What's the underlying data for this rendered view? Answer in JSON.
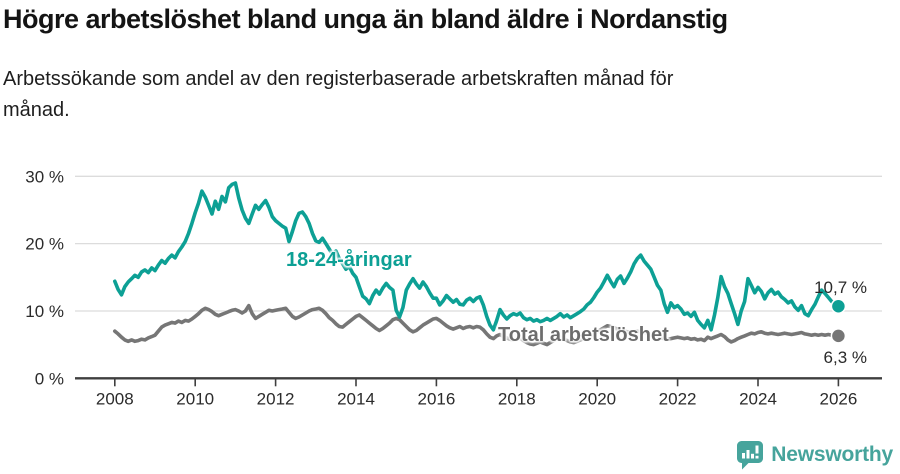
{
  "header": {
    "title": "Högre arbetslöshet bland unga än bland äldre i Nordanstig",
    "subtitle_lines": [
      "Arbetssökande som andel av den registerbaserade arbetskraften månad för",
      "månad."
    ]
  },
  "chart_data": {
    "type": "line",
    "title": "Högre arbetslöshet bland unga än bland äldre i Nordanstig",
    "subtitle": "Arbetssökande som andel av den registerbaserade arbetskraften månad för månad.",
    "xlabel": "",
    "ylabel": "",
    "x_start": 2008,
    "x_step_months": 1,
    "xlim": [
      2007,
      2027.1
    ],
    "ylim": [
      0,
      31
    ],
    "grid": true,
    "legend": "inline-labels",
    "x_ticks": [
      2008,
      2010,
      2012,
      2014,
      2016,
      2018,
      2020,
      2022,
      2024,
      2026
    ],
    "y_ticks": [
      {
        "value": 30,
        "label": "30 %"
      },
      {
        "value": 20,
        "label": "20 %"
      },
      {
        "value": 10,
        "label": "10 %"
      },
      {
        "value": 0,
        "label": "0 %"
      }
    ],
    "axis_color": "#3f3f3f",
    "grid_color": "#dcdcdc",
    "series": [
      {
        "name": "18-24-åringar",
        "color": "#0da095",
        "end_label": "10,7 %",
        "end_value": 10.7,
        "values": [
          14.4,
          13.2,
          12.4,
          13.6,
          14.3,
          14.8,
          15.3,
          15.0,
          15.8,
          16.1,
          15.7,
          16.4,
          16.0,
          16.8,
          17.5,
          17.1,
          17.8,
          18.3,
          17.9,
          18.8,
          19.5,
          20.3,
          21.5,
          23.0,
          24.6,
          26.0,
          27.8,
          26.9,
          25.7,
          24.4,
          26.3,
          25.1,
          27.0,
          26.2,
          28.3,
          28.8,
          29.0,
          26.8,
          25.0,
          23.8,
          23.0,
          24.4,
          25.7,
          25.1,
          25.8,
          26.4,
          25.4,
          24.0,
          23.4,
          23.0,
          22.6,
          22.3,
          20.3,
          21.8,
          23.4,
          24.5,
          24.7,
          24.0,
          23.0,
          21.5,
          20.4,
          20.2,
          20.8,
          20.0,
          19.2,
          18.4,
          18.9,
          17.8,
          17.0,
          16.2,
          16.6,
          15.6,
          15.0,
          13.6,
          12.2,
          11.8,
          11.1,
          12.3,
          13.1,
          12.5,
          13.4,
          14.1,
          13.5,
          13.1,
          10.1,
          9.1,
          10.5,
          13.1,
          14.0,
          14.8,
          14.0,
          13.4,
          14.3,
          13.6,
          12.7,
          11.9,
          11.9,
          10.9,
          11.5,
          12.3,
          11.8,
          11.3,
          11.7,
          11.0,
          10.9,
          11.6,
          11.9,
          11.4,
          11.9,
          12.1,
          10.9,
          9.2,
          7.9,
          7.2,
          8.6,
          10.2,
          9.4,
          8.8,
          9.3,
          9.6,
          9.4,
          9.7,
          9.0,
          8.7,
          8.9,
          8.5,
          8.7,
          8.4,
          8.6,
          8.9,
          8.6,
          8.9,
          9.2,
          9.6,
          9.1,
          9.4,
          9.0,
          9.3,
          9.6,
          9.9,
          10.3,
          10.9,
          11.3,
          12.0,
          12.8,
          13.4,
          14.3,
          15.3,
          14.4,
          13.6,
          14.7,
          15.2,
          14.1,
          14.9,
          15.8,
          17.0,
          17.8,
          18.3,
          17.4,
          16.8,
          16.2,
          15.0,
          13.8,
          13.1,
          11.1,
          9.8,
          11.2,
          10.5,
          10.8,
          10.3,
          9.5,
          9.7,
          9.2,
          9.8,
          8.6,
          8.0,
          7.5,
          8.6,
          7.2,
          9.4,
          12.0,
          15.1,
          13.6,
          12.6,
          11.1,
          9.6,
          8.0,
          10.0,
          11.4,
          14.8,
          13.8,
          12.7,
          13.5,
          12.9,
          11.8,
          12.7,
          13.2,
          12.5,
          12.8,
          12.1,
          11.7,
          11.2,
          11.5,
          10.6,
          10.1,
          10.8,
          9.6,
          9.3,
          10.2,
          11.0,
          12.1,
          13.1,
          12.6,
          12.0,
          11.4,
          11.0,
          10.7
        ]
      },
      {
        "name": "Total arbetslöshet",
        "color": "#767676",
        "end_label": "6,3 %",
        "end_value": 6.3,
        "values": [
          7.0,
          6.6,
          6.1,
          5.7,
          5.5,
          5.7,
          5.5,
          5.6,
          5.8,
          5.7,
          6.0,
          6.2,
          6.4,
          7.0,
          7.6,
          7.9,
          8.1,
          8.3,
          8.2,
          8.5,
          8.3,
          8.6,
          8.5,
          8.8,
          9.2,
          9.6,
          10.1,
          10.4,
          10.2,
          9.9,
          9.5,
          9.3,
          9.5,
          9.7,
          9.9,
          10.1,
          10.2,
          10.0,
          9.7,
          10.0,
          10.8,
          9.6,
          8.9,
          9.2,
          9.5,
          9.8,
          10.1,
          10.0,
          10.1,
          10.2,
          10.3,
          10.4,
          9.8,
          9.2,
          8.9,
          9.1,
          9.4,
          9.7,
          10.0,
          10.2,
          10.3,
          10.4,
          10.1,
          9.6,
          9.0,
          8.6,
          8.1,
          7.7,
          7.6,
          8.0,
          8.4,
          8.8,
          9.2,
          9.4,
          9.0,
          8.6,
          8.2,
          7.8,
          7.4,
          7.1,
          7.4,
          7.8,
          8.2,
          8.7,
          8.9,
          8.7,
          8.2,
          7.7,
          7.2,
          6.9,
          7.1,
          7.5,
          7.9,
          8.2,
          8.5,
          8.8,
          8.9,
          8.6,
          8.2,
          7.8,
          7.5,
          7.3,
          7.5,
          7.7,
          7.4,
          7.6,
          7.7,
          7.5,
          7.7,
          7.6,
          7.2,
          6.6,
          6.1,
          5.9,
          6.3,
          6.5,
          6.2,
          6.0,
          5.8,
          5.7,
          5.8,
          6.0,
          5.6,
          5.3,
          5.1,
          5.0,
          5.2,
          5.4,
          5.2,
          5.0,
          5.3,
          5.6,
          5.9,
          6.1,
          5.8,
          5.6,
          5.4,
          5.3,
          5.5,
          5.7,
          5.9,
          6.1,
          6.3,
          6.6,
          6.9,
          7.2,
          7.5,
          7.8,
          7.7,
          7.5,
          7.3,
          7.1,
          7.0,
          6.9,
          6.8,
          6.9,
          7.0,
          6.9,
          6.8,
          6.6,
          6.4,
          6.2,
          6.1,
          6.0,
          5.9,
          5.8,
          5.9,
          6.0,
          6.1,
          6.0,
          5.9,
          6.0,
          5.8,
          5.9,
          5.7,
          5.8,
          5.6,
          6.1,
          5.9,
          6.1,
          6.3,
          6.5,
          6.2,
          5.7,
          5.4,
          5.6,
          5.9,
          6.1,
          6.3,
          6.5,
          6.7,
          6.6,
          6.8,
          6.9,
          6.7,
          6.6,
          6.7,
          6.6,
          6.5,
          6.6,
          6.7,
          6.6,
          6.5,
          6.6,
          6.7,
          6.8,
          6.6,
          6.5,
          6.4,
          6.5,
          6.4,
          6.5,
          6.4,
          6.5,
          6.4,
          6.4,
          6.3
        ]
      }
    ]
  },
  "footer": {
    "brand": "Newsworthy",
    "logo_icon": "newsworthy-pin-icon",
    "brand_color": "#46a49c"
  }
}
